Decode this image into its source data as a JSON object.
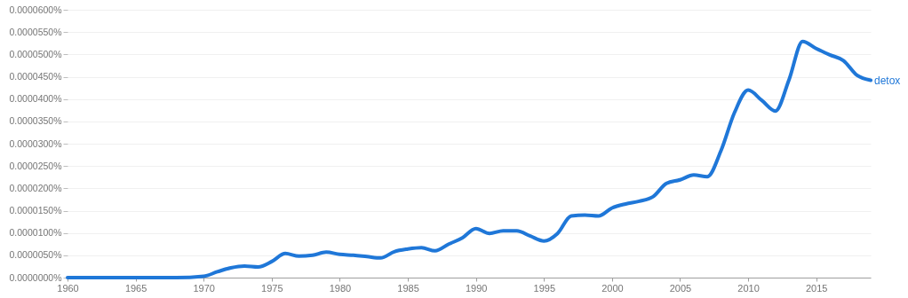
{
  "chart_data": {
    "type": "line",
    "x": [
      1960,
      1962,
      1964,
      1966,
      1968,
      1970,
      1971,
      1972,
      1973,
      1974,
      1975,
      1976,
      1977,
      1978,
      1979,
      1980,
      1981,
      1982,
      1983,
      1984,
      1985,
      1986,
      1987,
      1988,
      1989,
      1990,
      1991,
      1992,
      1993,
      1994,
      1995,
      1996,
      1997,
      1998,
      1999,
      2000,
      2001,
      2002,
      2003,
      2004,
      2005,
      2006,
      2007,
      2008,
      2009,
      2010,
      2011,
      2012,
      2013,
      2014,
      2015,
      2016,
      2017,
      2018,
      2019
    ],
    "series": [
      {
        "name": "detox",
        "color": "#1f77d8",
        "values": [
          0,
          0,
          0,
          0,
          0,
          3e-07,
          1.3e-06,
          2.2e-06,
          2.6e-06,
          2.4e-06,
          3.6e-06,
          5.4e-06,
          4.8e-06,
          5e-06,
          5.7e-06,
          5.2e-06,
          5e-06,
          4.7e-06,
          4.4e-06,
          5.8e-06,
          6.4e-06,
          6.7e-06,
          6e-06,
          7.5e-06,
          8.9e-06,
          1.1e-05,
          9.9e-06,
          1.05e-05,
          1.05e-05,
          9.3e-06,
          8.2e-06,
          9.9e-06,
          1.38e-05,
          1.4e-05,
          1.38e-05,
          1.56e-05,
          1.65e-05,
          1.71e-05,
          1.81e-05,
          2.11e-05,
          2.19e-05,
          2.3e-05,
          2.26e-05,
          2.84e-05,
          3.7e-05,
          4.2e-05,
          3.97e-05,
          3.73e-05,
          4.43e-05,
          5.29e-05,
          5.13e-05,
          4.99e-05,
          4.86e-05,
          4.53e-05,
          4.42e-05
        ]
      }
    ],
    "xlim": [
      1960,
      2019
    ],
    "xticks": [
      1960,
      1965,
      1970,
      1975,
      1980,
      1985,
      1990,
      1995,
      2000,
      2005,
      2010,
      2015
    ],
    "ylim": [
      0,
      6e-05
    ],
    "yticks": [
      {
        "value": 0,
        "label": "0.0000000%"
      },
      {
        "value": 5e-06,
        "label": "0.0000050%"
      },
      {
        "value": 1e-05,
        "label": "0.0000100%"
      },
      {
        "value": 1.5e-05,
        "label": "0.0000150%"
      },
      {
        "value": 2e-05,
        "label": "0.0000200%"
      },
      {
        "value": 2.5e-05,
        "label": "0.0000250%"
      },
      {
        "value": 3e-05,
        "label": "0.0000300%"
      },
      {
        "value": 3.5e-05,
        "label": "0.0000350%"
      },
      {
        "value": 4e-05,
        "label": "0.0000400%"
      },
      {
        "value": 4.5e-05,
        "label": "0.0000450%"
      },
      {
        "value": 5e-05,
        "label": "0.0000500%"
      },
      {
        "value": 5.5e-05,
        "label": "0.0000550%"
      },
      {
        "value": 6e-05,
        "label": "0.0000600%"
      }
    ],
    "grid": "y",
    "line_style": "solid"
  }
}
